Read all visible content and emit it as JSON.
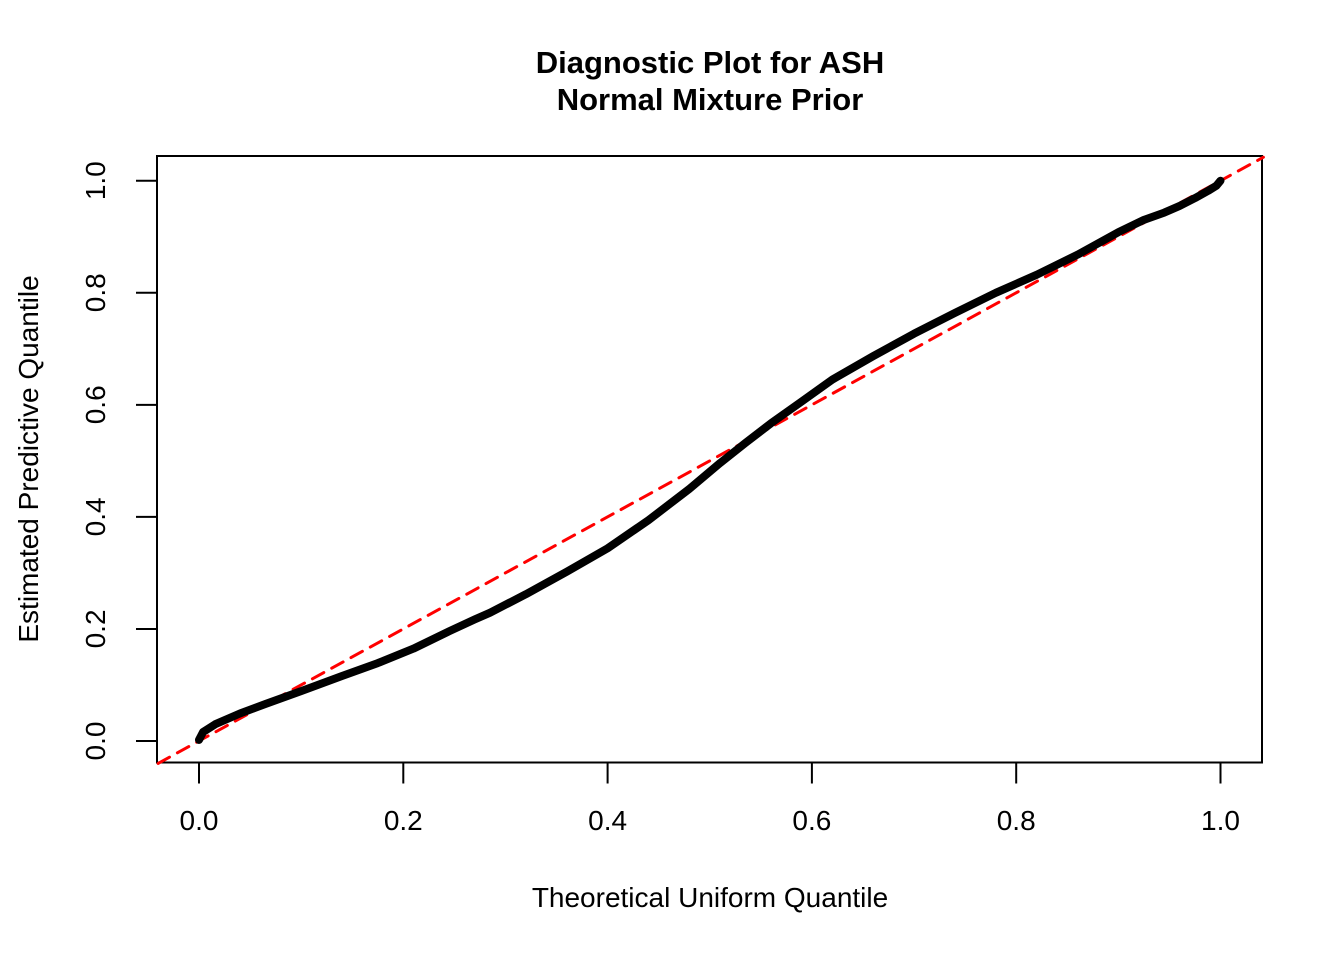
{
  "chart_data": {
    "type": "line",
    "title_line1": "Diagnostic Plot for ASH",
    "title_line2": "Normal Mixture Prior",
    "xlabel": "Theoretical Uniform Quantile",
    "ylabel": "Estimated Predictive Quantile",
    "xlim": [
      -0.04,
      1.04
    ],
    "ylim": [
      -0.04,
      1.04
    ],
    "x_ticks": [
      0.0,
      0.2,
      0.4,
      0.6,
      0.8,
      1.0
    ],
    "y_ticks": [
      0.0,
      0.2,
      0.4,
      0.6,
      0.8,
      1.0
    ],
    "grid": false,
    "legend": "none",
    "colors": {
      "curve": "#000000",
      "reference_line": "#FF0000",
      "axis": "#000000",
      "background": "#FFFFFF"
    },
    "series": [
      {
        "name": "estimated-predictive-quantile-curve",
        "type": "line",
        "color": "#000000",
        "style": "solid",
        "points": [
          [
            0.0,
            0.002
          ],
          [
            0.004,
            0.016
          ],
          [
            0.016,
            0.03
          ],
          [
            0.04,
            0.049
          ],
          [
            0.065,
            0.066
          ],
          [
            0.1,
            0.089
          ],
          [
            0.14,
            0.116
          ],
          [
            0.175,
            0.139
          ],
          [
            0.21,
            0.165
          ],
          [
            0.245,
            0.196
          ],
          [
            0.27,
            0.217
          ],
          [
            0.285,
            0.229
          ],
          [
            0.32,
            0.262
          ],
          [
            0.36,
            0.302
          ],
          [
            0.4,
            0.344
          ],
          [
            0.44,
            0.394
          ],
          [
            0.48,
            0.45
          ],
          [
            0.51,
            0.496
          ],
          [
            0.535,
            0.532
          ],
          [
            0.56,
            0.567
          ],
          [
            0.59,
            0.606
          ],
          [
            0.62,
            0.645
          ],
          [
            0.66,
            0.687
          ],
          [
            0.7,
            0.727
          ],
          [
            0.74,
            0.764
          ],
          [
            0.78,
            0.8
          ],
          [
            0.82,
            0.832
          ],
          [
            0.86,
            0.868
          ],
          [
            0.9,
            0.908
          ],
          [
            0.925,
            0.93
          ],
          [
            0.945,
            0.943
          ],
          [
            0.96,
            0.955
          ],
          [
            0.975,
            0.969
          ],
          [
            0.988,
            0.982
          ],
          [
            0.996,
            0.991
          ],
          [
            1.0,
            1.0
          ]
        ]
      },
      {
        "name": "identity-reference-line",
        "type": "line",
        "color": "#FF0000",
        "style": "dashed",
        "points": [
          [
            -0.04,
            -0.04
          ],
          [
            1.042,
            1.042
          ]
        ]
      }
    ]
  }
}
